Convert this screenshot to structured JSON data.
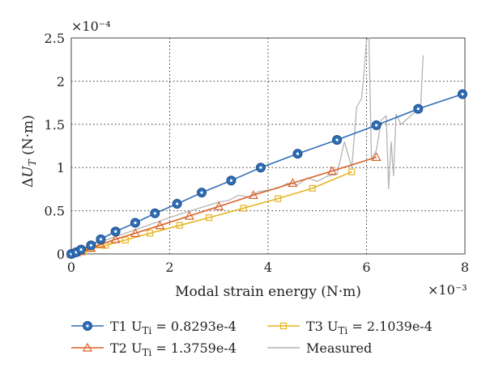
{
  "chart_data": {
    "type": "line",
    "xlabel": "Modal strain energy (N·m)",
    "ylabel": "ΔU_T (N·m)",
    "x_exponent_label": "×10⁻³",
    "y_exponent_label": "×10⁻⁴",
    "xlim": [
      0,
      8
    ],
    "ylim": [
      0,
      2.5
    ],
    "x_ticks": [
      0,
      2,
      4,
      6,
      8
    ],
    "y_ticks": [
      0,
      0.5,
      1,
      1.5,
      2,
      2.5
    ],
    "x_tick_labels": [
      "0",
      "2",
      "4",
      "6",
      "8"
    ],
    "y_tick_labels": [
      "0",
      "0.5",
      "1",
      "1.5",
      "2",
      "2.5"
    ],
    "grid": true,
    "legend_position": "bottom",
    "series": [
      {
        "id": "T1",
        "name_main": "T1 U",
        "name_sub": "Ti",
        "name_tail": " = 0.8293e-4",
        "color": "#2f6db5",
        "marker": "circle",
        "x": [
          0,
          0.1,
          0.2,
          0.4,
          0.6,
          0.9,
          1.3,
          1.7,
          2.15,
          2.65,
          3.25,
          3.85,
          4.6,
          5.4,
          6.2,
          7.05,
          7.95
        ],
        "y": [
          0,
          0.02,
          0.05,
          0.1,
          0.17,
          0.26,
          0.36,
          0.47,
          0.58,
          0.71,
          0.85,
          1.0,
          1.16,
          1.32,
          1.49,
          1.68,
          1.85
        ]
      },
      {
        "id": "T2",
        "name_main": "T2 U",
        "name_sub": "Ti",
        "name_tail": " = 1.3759e-4",
        "color": "#d9622b",
        "marker": "triangle",
        "x": [
          0,
          0.1,
          0.2,
          0.4,
          0.6,
          0.9,
          1.3,
          1.8,
          2.4,
          3.0,
          3.7,
          4.5,
          5.3,
          6.2
        ],
        "y": [
          0,
          0.015,
          0.03,
          0.07,
          0.11,
          0.17,
          0.24,
          0.33,
          0.44,
          0.55,
          0.68,
          0.82,
          0.96,
          1.12
        ]
      },
      {
        "id": "T3",
        "name_main": "T3 U",
        "name_sub": "Ti",
        "name_tail": " = 2.1039e-4",
        "color": "#e6b422",
        "marker": "square",
        "x": [
          0,
          0.1,
          0.25,
          0.4,
          0.7,
          1.1,
          1.6,
          2.2,
          2.8,
          3.5,
          4.2,
          4.9,
          5.7
        ],
        "y": [
          0,
          0.015,
          0.035,
          0.06,
          0.1,
          0.16,
          0.24,
          0.33,
          0.42,
          0.53,
          0.64,
          0.76,
          0.95
        ]
      },
      {
        "id": "Measured",
        "name_main": "Measured",
        "name_sub": "",
        "name_tail": "",
        "color": "#b4b4b4",
        "marker": "none",
        "x": [
          0,
          0.3,
          0.6,
          1.0,
          1.4,
          1.8,
          2.2,
          2.6,
          3.0,
          3.2,
          3.4,
          3.6,
          3.8,
          4.0,
          4.2,
          4.4,
          4.6,
          4.8,
          5.0,
          5.2,
          5.4,
          5.55,
          5.7,
          5.8,
          5.9,
          5.95,
          6.0,
          6.05,
          6.1,
          6.2,
          6.3,
          6.4,
          6.45,
          6.5,
          6.55,
          6.6,
          6.7,
          6.8,
          6.9,
          7.0,
          7.1,
          7.15
        ],
        "y": [
          0,
          0.07,
          0.14,
          0.22,
          0.3,
          0.38,
          0.46,
          0.53,
          0.6,
          0.62,
          0.68,
          0.66,
          0.72,
          0.74,
          0.76,
          0.82,
          0.8,
          0.88,
          0.84,
          0.9,
          0.92,
          1.3,
          1.0,
          1.7,
          1.8,
          2.1,
          2.48,
          2.5,
          1.1,
          1.2,
          1.55,
          1.6,
          0.75,
          1.3,
          0.9,
          1.62,
          1.5,
          1.55,
          1.6,
          1.65,
          1.7,
          2.3
        ]
      }
    ]
  }
}
